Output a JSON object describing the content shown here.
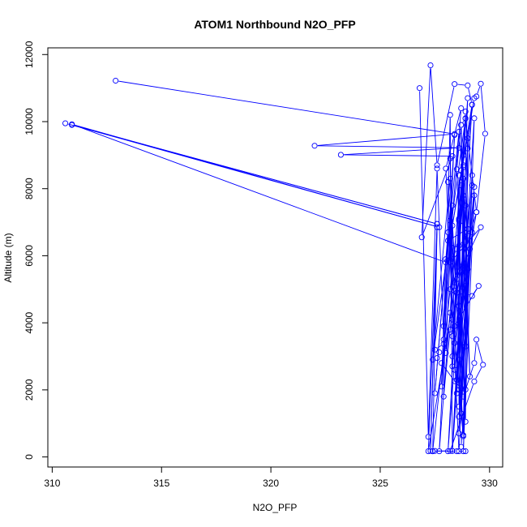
{
  "chart_data": {
    "type": "line",
    "title": "ATOM1 Northbound N2O_PFP",
    "xlabel": "N2O_PFP",
    "ylabel": "Altitude (m)",
    "xlim": [
      309.8,
      330.6
    ],
    "ylim": [
      -300,
      12200
    ],
    "x_ticks": [
      310,
      315,
      320,
      325,
      330
    ],
    "y_ticks": [
      0,
      2000,
      4000,
      6000,
      8000,
      10000,
      12000
    ],
    "x_tick_labels": [
      "310",
      "315",
      "320",
      "325",
      "330"
    ],
    "y_tick_labels": [
      "0",
      "2000",
      "4000",
      "6000",
      "8000",
      "10000",
      "12000"
    ],
    "color": "#0000ff",
    "grid": false,
    "series": [
      {
        "points": [
          [
            312.9,
            11220
          ],
          [
            328.4,
            9630
          ],
          [
            322.0,
            9280
          ],
          [
            328.6,
            9220
          ],
          [
            323.2,
            9010
          ],
          [
            328.3,
            8970
          ],
          [
            326.9,
            6550
          ],
          [
            327.3,
            11680
          ],
          [
            327.6,
            8700
          ],
          [
            328.4,
            11120
          ],
          [
            329.0,
            11080
          ],
          [
            329.2,
            10510
          ],
          [
            328.3,
            6900
          ],
          [
            329.3,
            10700
          ],
          [
            329.4,
            10750
          ],
          [
            329.6,
            11130
          ],
          [
            329.8,
            9640
          ],
          [
            329.4,
            7300
          ],
          [
            328.9,
            10090
          ],
          [
            328.7,
            9900
          ],
          [
            328.5,
            8580
          ],
          [
            328.6,
            7050
          ],
          [
            329.0,
            6800
          ],
          [
            328.1,
            6450
          ],
          [
            328.5,
            6200
          ],
          [
            328.2,
            5800
          ],
          [
            329.6,
            6850
          ],
          [
            328.7,
            5600
          ],
          [
            328.7,
            4930
          ],
          [
            329.2,
            4800
          ],
          [
            329.5,
            5100
          ],
          [
            328.4,
            3900
          ],
          [
            328.2,
            3800
          ],
          [
            327.9,
            3370
          ],
          [
            327.5,
            3200
          ],
          [
            327.7,
            3120
          ],
          [
            327.6,
            2950
          ],
          [
            327.8,
            2800
          ],
          [
            328.4,
            2260
          ],
          [
            328.7,
            2050
          ],
          [
            328.8,
            1800
          ],
          [
            329.3,
            2800
          ],
          [
            329.4,
            3500
          ],
          [
            329.7,
            2750
          ],
          [
            329.3,
            2250
          ],
          [
            328.2,
            180
          ],
          [
            327.4,
            170
          ],
          [
            327.5,
            180
          ],
          [
            328.5,
            170
          ],
          [
            328.9,
            170
          ],
          [
            328.7,
            300
          ],
          [
            328.9,
            2010
          ],
          [
            328.2,
            7050
          ],
          [
            328.4,
            4950
          ],
          [
            327.2,
            170
          ],
          [
            327.6,
            6950
          ],
          [
            327.3,
            180
          ],
          [
            327.6,
            6850
          ],
          [
            327.4,
            170
          ],
          [
            328.8,
            8650
          ],
          [
            328.1,
            170
          ],
          [
            328.7,
            5500
          ],
          [
            328.3,
            180
          ],
          [
            329.2,
            8400
          ],
          [
            328.8,
            170
          ],
          [
            329.3,
            7800
          ],
          [
            328.6,
            170
          ],
          [
            328.0,
            8600
          ],
          [
            328.7,
            10400
          ],
          [
            327.9,
            3900
          ],
          [
            328.4,
            9600
          ],
          [
            327.7,
            170
          ],
          [
            328.7,
            8550
          ],
          [
            328.9,
            10100
          ],
          [
            327.4,
            2900
          ],
          [
            328.2,
            8300
          ],
          [
            328.8,
            650
          ],
          [
            329.3,
            10100
          ],
          [
            328.6,
            2900
          ],
          [
            329.0,
            10700
          ],
          [
            328.4,
            5200
          ],
          [
            329.2,
            10500
          ],
          [
            328.3,
            180
          ],
          [
            328.2,
            10200
          ],
          [
            327.9,
            1800
          ],
          [
            329.0,
            9200
          ],
          [
            328.8,
            620
          ],
          [
            328.2,
            5000
          ]
        ]
      },
      {
        "points": [
          [
            310.6,
            9950
          ],
          [
            327.6,
            6950
          ],
          [
            310.9,
            9900
          ],
          [
            327.7,
            6850
          ],
          [
            310.9,
            9920
          ],
          [
            328.0,
            5800
          ],
          [
            328.6,
            9700
          ],
          [
            329.0,
            6600
          ],
          [
            328.6,
            6300
          ],
          [
            328.8,
            9000
          ],
          [
            328.3,
            3000
          ],
          [
            329.2,
            8100
          ],
          [
            328.6,
            1200
          ],
          [
            329.2,
            6700
          ],
          [
            328.6,
            2000
          ],
          [
            329.3,
            8050
          ],
          [
            328.9,
            5100
          ],
          [
            329.1,
            2400
          ],
          [
            328.9,
            6400
          ],
          [
            328.7,
            9900
          ],
          [
            328.9,
            3300
          ],
          [
            328.8,
            8700
          ],
          [
            328.3,
            2700
          ],
          [
            328.9,
            10300
          ],
          [
            328.5,
            4900
          ],
          [
            328.6,
            7100
          ],
          [
            328.9,
            1050
          ],
          [
            329.0,
            9500
          ],
          [
            328.6,
            1500
          ],
          [
            328.6,
            8400
          ],
          [
            328.5,
            5300
          ],
          [
            329.4,
            7300
          ],
          [
            328.4,
            3400
          ],
          [
            328.2,
            8900
          ],
          [
            328.3,
            4100
          ],
          [
            329.0,
            6800
          ],
          [
            328.5,
            1900
          ],
          [
            328.7,
            8100
          ],
          [
            328.6,
            4500
          ],
          [
            328.1,
            8200
          ],
          [
            328.4,
            2600
          ],
          [
            329.0,
            5600
          ],
          [
            328.7,
            1300
          ],
          [
            328.8,
            7800
          ],
          [
            328.3,
            3600
          ],
          [
            328.8,
            8300
          ],
          [
            328.6,
            700
          ],
          [
            329.1,
            6200
          ],
          [
            328.5,
            2300
          ],
          [
            328.9,
            7500
          ]
        ]
      },
      {
        "points": [
          [
            326.8,
            11000
          ],
          [
            327.2,
            600
          ],
          [
            327.6,
            8600
          ],
          [
            327.9,
            3500
          ],
          [
            328.1,
            6700
          ],
          [
            327.5,
            1900
          ],
          [
            328.0,
            5900
          ],
          [
            327.8,
            2100
          ],
          [
            328.3,
            7500
          ],
          [
            328.0,
            3100
          ],
          [
            328.2,
            4300
          ]
        ]
      }
    ]
  }
}
